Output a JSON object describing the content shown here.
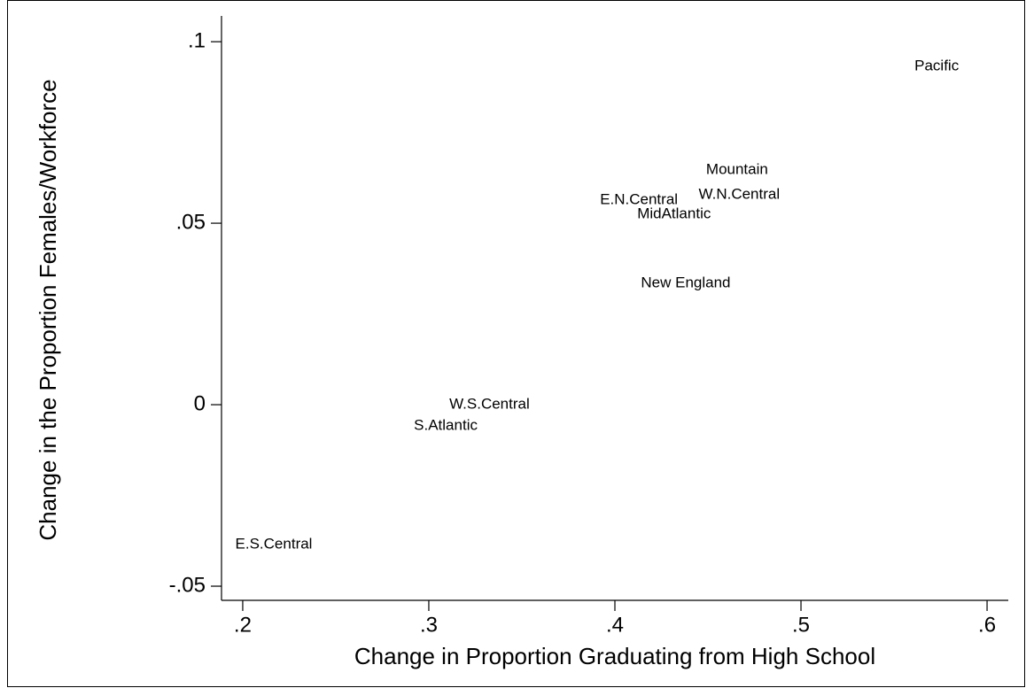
{
  "chart_data": {
    "type": "scatter",
    "x_label": "Change in Proportion Graduating from High School",
    "y_label": "Change in the Proportion Females/Workforce",
    "categories": [
      "Pacific",
      "Mountain",
      "W.N.Central",
      "E.N.Central",
      "MidAtlantic",
      "New England",
      "W.S.Central",
      "S.Atlantic",
      "E.S.Central"
    ],
    "x": [
      0.561,
      0.449,
      0.445,
      0.392,
      0.412,
      0.414,
      0.311,
      0.292,
      0.196
    ],
    "values": [
      0.0932,
      0.0646,
      0.0578,
      0.0563,
      0.0524,
      0.0334,
      0.0,
      -0.0059,
      -0.0385
    ],
    "xlim": [
      0.1886,
      0.6114
    ],
    "ylim": [
      -0.0539,
      0.1071
    ],
    "xticks": [
      {
        "value": 0.2,
        "label": ".2"
      },
      {
        "value": 0.3,
        "label": ".3"
      },
      {
        "value": 0.4,
        "label": ".4"
      },
      {
        "value": 0.5,
        "label": ".5"
      },
      {
        "value": 0.6,
        "label": ".6"
      }
    ],
    "yticks": [
      {
        "value": -0.05,
        "label": "-.05"
      },
      0,
      {
        "value": 0.05,
        "label": ".05"
      },
      {
        "value": 0.1,
        "label": ".1"
      }
    ],
    "grid": false
  }
}
